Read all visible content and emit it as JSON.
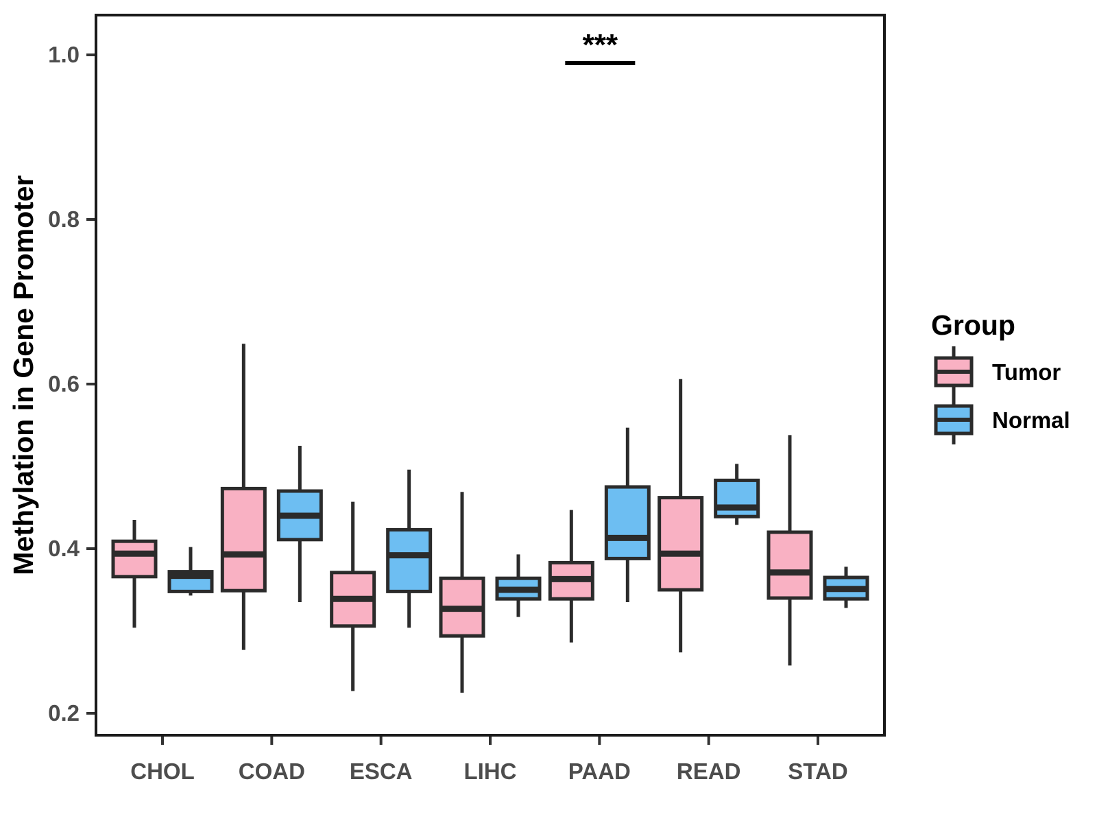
{
  "chart_data": {
    "type": "boxplot",
    "title": "",
    "xlabel": "",
    "ylabel": "Methylation in Gene Promoter",
    "categories": [
      "CHOL",
      "COAD",
      "ESCA",
      "LIHC",
      "PAAD",
      "READ",
      "STAD"
    ],
    "yticks": [
      0.2,
      0.4,
      0.6,
      0.8,
      1.0
    ],
    "ytick_labels": [
      "0.2",
      "0.4",
      "0.6",
      "0.8",
      "1.0"
    ],
    "ylim": [
      0.17,
      1.05
    ],
    "grid": false,
    "panel_border": true,
    "series": [
      {
        "name": "Tumor",
        "color": "#F9B1C3",
        "boxes": [
          {
            "category": "CHOL",
            "whisker_low": 0.304,
            "q1": 0.366,
            "median": 0.394,
            "q3": 0.409,
            "whisker_high": 0.435
          },
          {
            "category": "COAD",
            "whisker_low": 0.277,
            "q1": 0.349,
            "median": 0.393,
            "q3": 0.473,
            "whisker_high": 0.649
          },
          {
            "category": "ESCA",
            "whisker_low": 0.227,
            "q1": 0.306,
            "median": 0.339,
            "q3": 0.371,
            "whisker_high": 0.457
          },
          {
            "category": "LIHC",
            "whisker_low": 0.225,
            "q1": 0.294,
            "median": 0.327,
            "q3": 0.364,
            "whisker_high": 0.469
          },
          {
            "category": "PAAD",
            "whisker_low": 0.286,
            "q1": 0.339,
            "median": 0.363,
            "q3": 0.383,
            "whisker_high": 0.447
          },
          {
            "category": "READ",
            "whisker_low": 0.274,
            "q1": 0.35,
            "median": 0.394,
            "q3": 0.462,
            "whisker_high": 0.606
          },
          {
            "category": "STAD",
            "whisker_low": 0.258,
            "q1": 0.34,
            "median": 0.371,
            "q3": 0.42,
            "whisker_high": 0.538
          }
        ]
      },
      {
        "name": "Normal",
        "color": "#6DBEF2",
        "boxes": [
          {
            "category": "CHOL",
            "whisker_low": 0.343,
            "q1": 0.348,
            "median": 0.367,
            "q3": 0.372,
            "whisker_high": 0.402
          },
          {
            "category": "COAD",
            "whisker_low": 0.335,
            "q1": 0.411,
            "median": 0.44,
            "q3": 0.47,
            "whisker_high": 0.525
          },
          {
            "category": "ESCA",
            "whisker_low": 0.304,
            "q1": 0.348,
            "median": 0.392,
            "q3": 0.423,
            "whisker_high": 0.496
          },
          {
            "category": "LIHC",
            "whisker_low": 0.317,
            "q1": 0.339,
            "median": 0.35,
            "q3": 0.364,
            "whisker_high": 0.393
          },
          {
            "category": "PAAD",
            "whisker_low": 0.335,
            "q1": 0.388,
            "median": 0.413,
            "q3": 0.475,
            "whisker_high": 0.547
          },
          {
            "category": "READ",
            "whisker_low": 0.429,
            "q1": 0.439,
            "median": 0.45,
            "q3": 0.483,
            "whisker_high": 0.503
          },
          {
            "category": "STAD",
            "whisker_low": 0.328,
            "q1": 0.339,
            "median": 0.351,
            "q3": 0.365,
            "whisker_high": 0.378
          }
        ]
      }
    ],
    "legend": {
      "title": "Group",
      "position": "right",
      "entries": [
        {
          "label": "Tumor",
          "color": "#F9B1C3"
        },
        {
          "label": "Normal",
          "color": "#6DBEF2"
        }
      ]
    },
    "annotation": {
      "text": "***",
      "over_category": "PAAD",
      "bar_value": 0.99
    },
    "style": {
      "box_stroke": "#2b2b2b",
      "axis_color": "#333333"
    }
  }
}
